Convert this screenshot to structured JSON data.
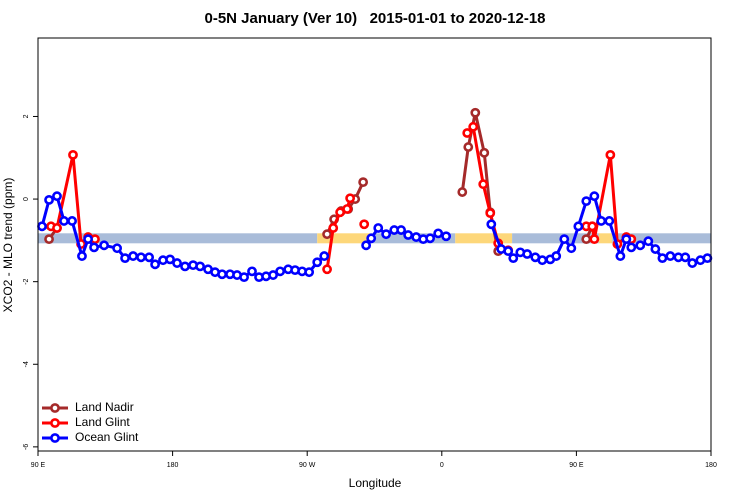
{
  "chart_data": {
    "type": "line",
    "title": "0-5N January (Ver 10)   2015-01-01 to 2020-12-18",
    "xlabel": "Longitude",
    "ylabel": "XCO2 - MLO trend (ppm)",
    "xlim": [
      90,
      540
    ],
    "ylim": [
      -6.1,
      3.9
    ],
    "xticks": [
      {
        "value": 90,
        "label": "90 E"
      },
      180,
      {
        "value": 270,
        "label": "90 W"
      },
      {
        "value": 360,
        "label": "0"
      },
      {
        "value": 450,
        "label": "90 E"
      },
      {
        "value": 540,
        "label": "180"
      }
    ],
    "yticks": [
      -6,
      -4,
      -2,
      0,
      2
    ],
    "legend": "bottom-left",
    "band": {
      "value": -0.95,
      "segments": [
        {
          "from": 90,
          "to": 276.7,
          "color": "#a9bcd9"
        },
        {
          "from": 276.7,
          "to": 312,
          "color": "#fdd77a"
        },
        {
          "from": 312,
          "to": 369,
          "color": "#a9bcd9"
        },
        {
          "from": 369,
          "to": 407,
          "color": "#fdd77a"
        },
        {
          "from": 407,
          "to": 465,
          "color": "#a9bcd9"
        },
        {
          "from": 465,
          "to": 474,
          "color": "#fdd77a"
        },
        {
          "from": 474,
          "to": 540,
          "color": "#a9bcd9"
        }
      ]
    },
    "series": [
      {
        "name": "Land Nadir",
        "color": "#a52a2a",
        "x": [
          97.4,
          102.7,
          null,
          283.3,
          288.0,
          292.7,
          297.4,
          302.1,
          307.4,
          null,
          373.7,
          377.7,
          382.4,
          388.4,
          392.4,
          397.7,
          null,
          456.6,
          460.6
        ],
        "values": [
          -0.97,
          -0.7,
          null,
          -0.85,
          -0.49,
          -0.29,
          -0.24,
          0.0,
          0.41,
          null,
          0.17,
          1.26,
          2.09,
          1.12,
          -0.32,
          -1.26,
          null,
          -0.97,
          -0.66
        ]
      },
      {
        "name": "Land Glint",
        "color": "#ff0000",
        "x": [
          98.7,
          102.7,
          113.4,
          118.8,
          123.5,
          128.1,
          null,
          283.3,
          287.4,
          292.0,
          296.7,
          298.7,
          null,
          308.1,
          null,
          377.0,
          381.0,
          387.7,
          392.4,
          397.7,
          404.4,
          null,
          456.6,
          460.6,
          462.0,
          472.7,
          477.4,
          483.4,
          486.7
        ],
        "values": [
          -0.66,
          -0.7,
          1.07,
          -1.09,
          -0.92,
          -0.97,
          null,
          -1.7,
          -0.7,
          -0.32,
          -0.24,
          0.02,
          null,
          -0.61,
          null,
          1.6,
          1.75,
          0.36,
          -0.34,
          -1.07,
          -1.24,
          null,
          -0.66,
          -0.66,
          -0.97,
          1.07,
          -1.09,
          -0.92,
          -0.97
        ]
      },
      {
        "name": "Ocean Glint",
        "color": "#0000ff",
        "x": [
          92.7,
          97.4,
          102.7,
          107.4,
          112.8,
          119.4,
          123.5,
          127.5,
          134.2,
          142.9,
          148.2,
          153.6,
          158.9,
          164.3,
          168.3,
          173.6,
          178.3,
          183.0,
          188.3,
          193.7,
          198.4,
          203.7,
          208.4,
          213.1,
          218.4,
          223.1,
          227.8,
          233.1,
          237.8,
          242.5,
          247.2,
          251.9,
          257.3,
          261.9,
          266.6,
          271.3,
          276.7,
          281.4,
          null,
          309.4,
          312.8,
          317.5,
          322.8,
          328.2,
          332.8,
          337.5,
          342.9,
          347.6,
          352.2,
          357.6,
          362.9,
          null,
          393.1,
          399.7,
          404.4,
          407.8,
          412.5,
          417.1,
          422.5,
          427.2,
          432.5,
          436.5,
          441.9,
          446.6,
          451.3,
          456.6,
          462.0,
          466.6,
          472.0,
          479.4,
          483.4,
          486.7,
          492.7,
          498.1,
          502.8,
          507.5,
          512.8,
          518.2,
          522.8,
          527.5,
          532.9,
          537.6
        ],
        "values": [
          -0.66,
          -0.02,
          0.07,
          -0.53,
          -0.53,
          -1.38,
          -0.97,
          -1.17,
          -1.12,
          -1.19,
          -1.43,
          -1.38,
          -1.41,
          -1.41,
          -1.58,
          -1.48,
          -1.46,
          -1.55,
          -1.63,
          -1.6,
          -1.63,
          -1.7,
          -1.77,
          -1.82,
          -1.82,
          -1.84,
          -1.89,
          -1.75,
          -1.89,
          -1.87,
          -1.84,
          -1.75,
          -1.7,
          -1.72,
          -1.75,
          -1.77,
          -1.53,
          -1.38,
          null,
          -1.12,
          -0.95,
          -0.7,
          -0.85,
          -0.75,
          -0.75,
          -0.87,
          -0.92,
          -0.97,
          -0.95,
          -0.83,
          -0.9,
          null,
          -0.61,
          -1.21,
          -1.26,
          -1.43,
          -1.29,
          -1.33,
          -1.41,
          -1.48,
          -1.46,
          -1.38,
          -0.97,
          -1.19,
          -0.66,
          -0.05,
          0.07,
          -0.53,
          -0.53,
          -1.38,
          -0.97,
          -1.17,
          -1.12,
          -1.02,
          -1.21,
          -1.43,
          -1.38,
          -1.41,
          -1.41,
          -1.55,
          -1.48,
          -1.43
        ]
      }
    ]
  }
}
